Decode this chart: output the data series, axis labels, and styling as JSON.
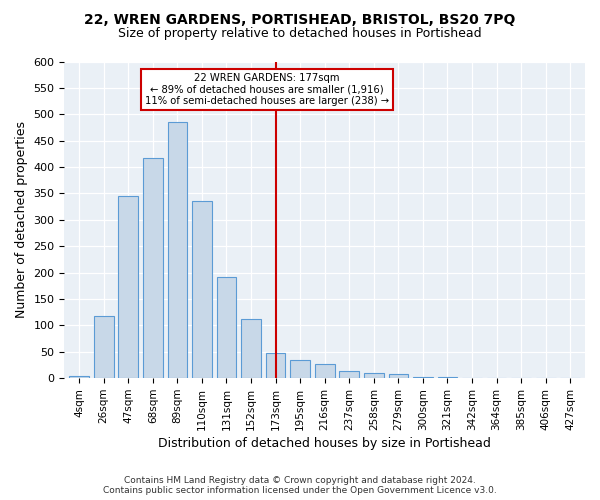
{
  "title": "22, WREN GARDENS, PORTISHEAD, BRISTOL, BS20 7PQ",
  "subtitle": "Size of property relative to detached houses in Portishead",
  "xlabel": "Distribution of detached houses by size in Portishead",
  "ylabel": "Number of detached properties",
  "bar_color": "#c8d8e8",
  "bar_edge_color": "#5b9bd5",
  "categories": [
    "4sqm",
    "26sqm",
    "47sqm",
    "68sqm",
    "89sqm",
    "110sqm",
    "131sqm",
    "152sqm",
    "173sqm",
    "195sqm",
    "216sqm",
    "237sqm",
    "258sqm",
    "279sqm",
    "300sqm",
    "321sqm",
    "342sqm",
    "364sqm",
    "385sqm",
    "406sqm",
    "427sqm"
  ],
  "values": [
    5,
    118,
    345,
    417,
    485,
    336,
    192,
    112,
    48,
    35,
    26,
    14,
    9,
    8,
    3,
    2,
    1,
    1,
    0,
    1,
    0
  ],
  "ylim": [
    0,
    600
  ],
  "yticks": [
    0,
    50,
    100,
    150,
    200,
    250,
    300,
    350,
    400,
    450,
    500,
    550,
    600
  ],
  "property_label": "22 WREN GARDENS: 177sqm",
  "annotation_line1": "← 89% of detached houses are smaller (1,916)",
  "annotation_line2": "11% of semi-detached houses are larger (238) →",
  "vline_bar_index": 8,
  "annotation_color": "#cc0000",
  "background_color": "#eaf0f6",
  "footer_line1": "Contains HM Land Registry data © Crown copyright and database right 2024.",
  "footer_line2": "Contains public sector information licensed under the Open Government Licence v3.0."
}
